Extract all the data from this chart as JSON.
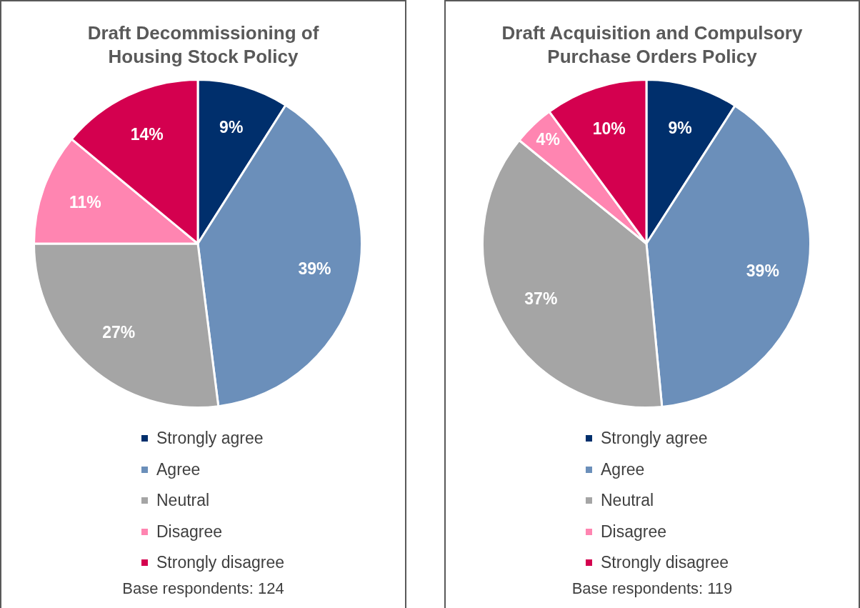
{
  "chart_data": [
    {
      "type": "pie",
      "title": "Draft Decommissioning of Housing Stock Policy",
      "categories": [
        "Strongly agree",
        "Agree",
        "Neutral",
        "Disagree",
        "Strongly disagree"
      ],
      "values": [
        9,
        39,
        27,
        11,
        14
      ],
      "value_labels": [
        "9%",
        "39%",
        "27%",
        "11%",
        "14%"
      ],
      "colors": [
        "#002f6c",
        "#6b8fba",
        "#a5a5a5",
        "#ff85b1",
        "#d4004f"
      ],
      "legend": "bottom",
      "annotations": [
        "Base respondents: 124"
      ]
    },
    {
      "type": "pie",
      "title": "Draft Acquisition and Compulsory Purchase Orders Policy",
      "categories": [
        "Strongly agree",
        "Agree",
        "Neutral",
        "Disagree",
        "Strongly disagree"
      ],
      "values": [
        9,
        39,
        37,
        4,
        10
      ],
      "value_labels": [
        "9%",
        "39%",
        "37%",
        "4%",
        "10%"
      ],
      "colors": [
        "#002f6c",
        "#6b8fba",
        "#a5a5a5",
        "#ff85b1",
        "#d4004f"
      ],
      "legend": "bottom",
      "annotations": [
        "Base respondents: 119"
      ]
    }
  ]
}
